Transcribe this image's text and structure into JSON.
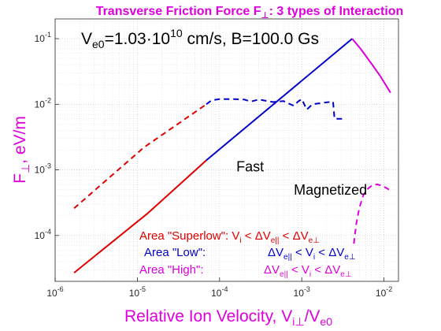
{
  "chart_data": {
    "type": "line",
    "title": "Transverse Friction Force F⊥: 3 types of Interaction",
    "annotation_top": "Ve0=1.03·1010 cm/s,  B=100.0 Gs",
    "xlabel": "Relative Ion Velocity, Vi⊥/Ve0",
    "ylabel": "F⊥, eV/m",
    "x_scale": "log",
    "y_scale": "log",
    "xlim": [
      1e-06,
      0.015
    ],
    "ylim": [
      2e-05,
      0.2
    ],
    "x_ticks": [
      1e-06,
      1e-05,
      0.0001,
      0.001,
      0.01
    ],
    "x_tick_labels": [
      "10-6",
      "10-5",
      "10-4",
      "10-3",
      "10-2"
    ],
    "y_ticks": [
      0.0001,
      0.001,
      0.01,
      0.1
    ],
    "y_tick_labels": [
      "10-4",
      "10-3",
      "10-2",
      "10-1"
    ],
    "grid": true,
    "series": [
      {
        "color": "#e00000",
        "style": "solid",
        "points": [
          [
            1.7e-06,
            2.7e-05
          ],
          [
            1.35e-05,
            0.00022
          ],
          [
            6.9e-05,
            0.0014
          ]
        ]
      },
      {
        "color": "#e00000",
        "style": "dashed",
        "points": [
          [
            1.7e-06,
            0.00026
          ],
          [
            1.2e-05,
            0.0022
          ],
          [
            6.9e-05,
            0.01
          ]
        ]
      },
      {
        "color": "#0000cc",
        "style": "solid",
        "points": [
          [
            6.9e-05,
            0.0014
          ],
          [
            0.0041,
            0.1
          ]
        ]
      },
      {
        "color": "#0000cc",
        "style": "dashed",
        "points": [
          [
            6.9e-05,
            0.01
          ],
          [
            8e-05,
            0.0115
          ],
          [
            0.0001,
            0.012
          ],
          [
            0.00014,
            0.012
          ],
          [
            0.0002,
            0.0118
          ],
          [
            0.00024,
            0.011
          ],
          [
            0.0003,
            0.0118
          ],
          [
            0.00045,
            0.0108
          ],
          [
            0.0006,
            0.0112
          ],
          [
            0.0007,
            0.0102
          ],
          [
            0.0008,
            0.0095
          ],
          [
            0.0009,
            0.011
          ],
          [
            0.001,
            0.012
          ],
          [
            0.00115,
            0.0083
          ],
          [
            0.00135,
            0.01
          ],
          [
            0.002,
            0.0107
          ],
          [
            0.0024,
            0.011
          ],
          [
            0.0025,
            0.006
          ],
          [
            0.0031,
            0.006
          ]
        ]
      },
      {
        "color": "#dd00dd",
        "style": "solid",
        "points": [
          [
            0.0041,
            0.1
          ],
          [
            0.0052,
            0.07
          ],
          [
            0.007,
            0.042
          ],
          [
            0.009,
            0.027
          ],
          [
            0.012,
            0.015
          ]
        ]
      },
      {
        "color": "#dd00dd",
        "style": "dashed",
        "points": [
          [
            0.0043,
            7.5e-05
          ],
          [
            0.0046,
            0.00015
          ],
          [
            0.005,
            0.00026
          ],
          [
            0.0056,
            0.00041
          ],
          [
            0.0064,
            0.00052
          ],
          [
            0.0073,
            0.00059
          ],
          [
            0.0083,
            0.0006
          ],
          [
            0.0096,
            0.00057
          ],
          [
            0.011,
            0.00052
          ],
          [
            0.012,
            0.00048
          ]
        ]
      }
    ],
    "annotations": [
      {
        "text": "Fast",
        "color": "#000000",
        "x": 0.00016,
        "y": 0.00095
      },
      {
        "text": "Magnetized",
        "color": "#000000",
        "x": 0.0008,
        "y": 0.00042
      }
    ],
    "legend": {
      "placement": "bottom-center",
      "rows": [
        {
          "left": "Area \"Superlow\": Vi < ΔVe|| < ΔVe⊥",
          "right": "",
          "color": "#e00000"
        },
        {
          "left": "Area \"Low\":",
          "right": "ΔVe|| < Vi < ΔVe⊥",
          "color": "#0000cc"
        },
        {
          "left": "Area \"High\":",
          "right": "ΔVe|| < Vi < ΔVe⊥",
          "color": "#dd00dd"
        }
      ]
    },
    "colors": {
      "title": "#dd00dd",
      "xlabel": "#dd00dd",
      "ylabel": "#dd00dd"
    }
  }
}
